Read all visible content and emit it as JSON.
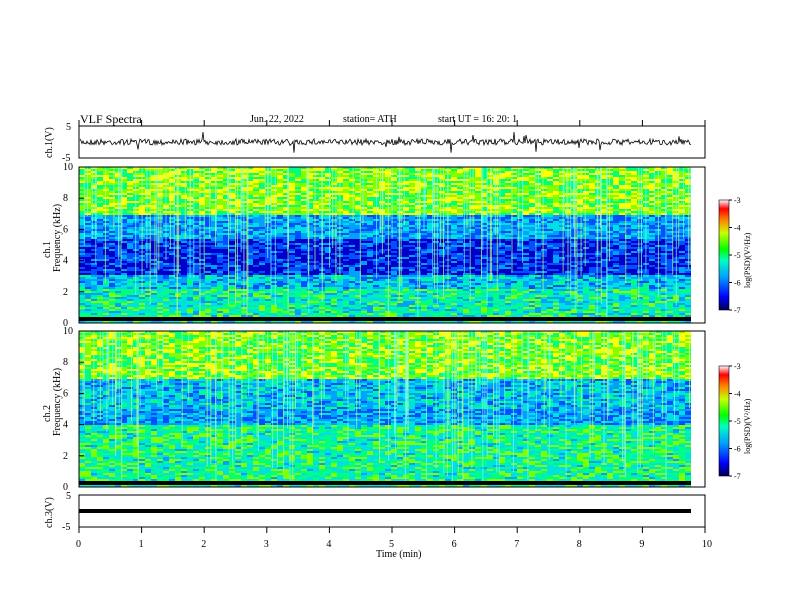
{
  "header": {
    "title": "VLF  Spectra",
    "date": "Jun. 22, 2022",
    "station": "station= ATH",
    "start_ut": "start  UT  =    16: 20: 1"
  },
  "chart_data": [
    {
      "type": "line",
      "name": "ch1-waveform",
      "ylabel": "ch.1(V)",
      "ylim": [
        -5,
        5
      ],
      "y_ticks": [
        "5",
        "-5"
      ],
      "xlim": [
        0,
        10
      ]
    },
    {
      "type": "heatmap",
      "name": "ch1-spectrogram",
      "ylabel_top": "ch.1",
      "ylabel": "Frequency  (kHz)",
      "ylim": [
        0,
        10
      ],
      "y_ticks": [
        "0",
        "2",
        "4",
        "6",
        "8",
        "10"
      ],
      "xlim": [
        0,
        10
      ],
      "colorbar": {
        "label": "log(PSD)(V²/Hz)",
        "ticks": [
          "-3",
          "-4",
          "-5",
          "-6",
          "-7"
        ],
        "range": [
          -7,
          -3
        ]
      }
    },
    {
      "type": "heatmap",
      "name": "ch2-spectrogram",
      "ylabel_top": "ch.2",
      "ylabel": "Frequency  (kHz)",
      "ylim": [
        0,
        10
      ],
      "y_ticks": [
        "0",
        "2",
        "4",
        "6",
        "8",
        "10"
      ],
      "xlim": [
        0,
        10
      ],
      "colorbar": {
        "label": "log(PSD)(V²/Hz)",
        "ticks": [
          "-3",
          "-4",
          "-5",
          "-6",
          "-7"
        ],
        "range": [
          -7,
          -3
        ]
      }
    },
    {
      "type": "line",
      "name": "ch3-waveform",
      "ylabel": "ch.3(V)",
      "ylim": [
        -5,
        5
      ],
      "y_ticks": [
        "5",
        "-5"
      ],
      "xlim": [
        0,
        10
      ],
      "xlabel": "Time  (min)",
      "x_ticks": [
        "0",
        "1",
        "2",
        "3",
        "4",
        "5",
        "6",
        "7",
        "8",
        "9",
        "10"
      ]
    }
  ],
  "colors": {
    "frame": "#000000",
    "cmap": [
      "#000080",
      "#0000ff",
      "#00c8ff",
      "#00ff80",
      "#c8ff00",
      "#ff8000",
      "#ff0000",
      "#ffffff"
    ]
  }
}
